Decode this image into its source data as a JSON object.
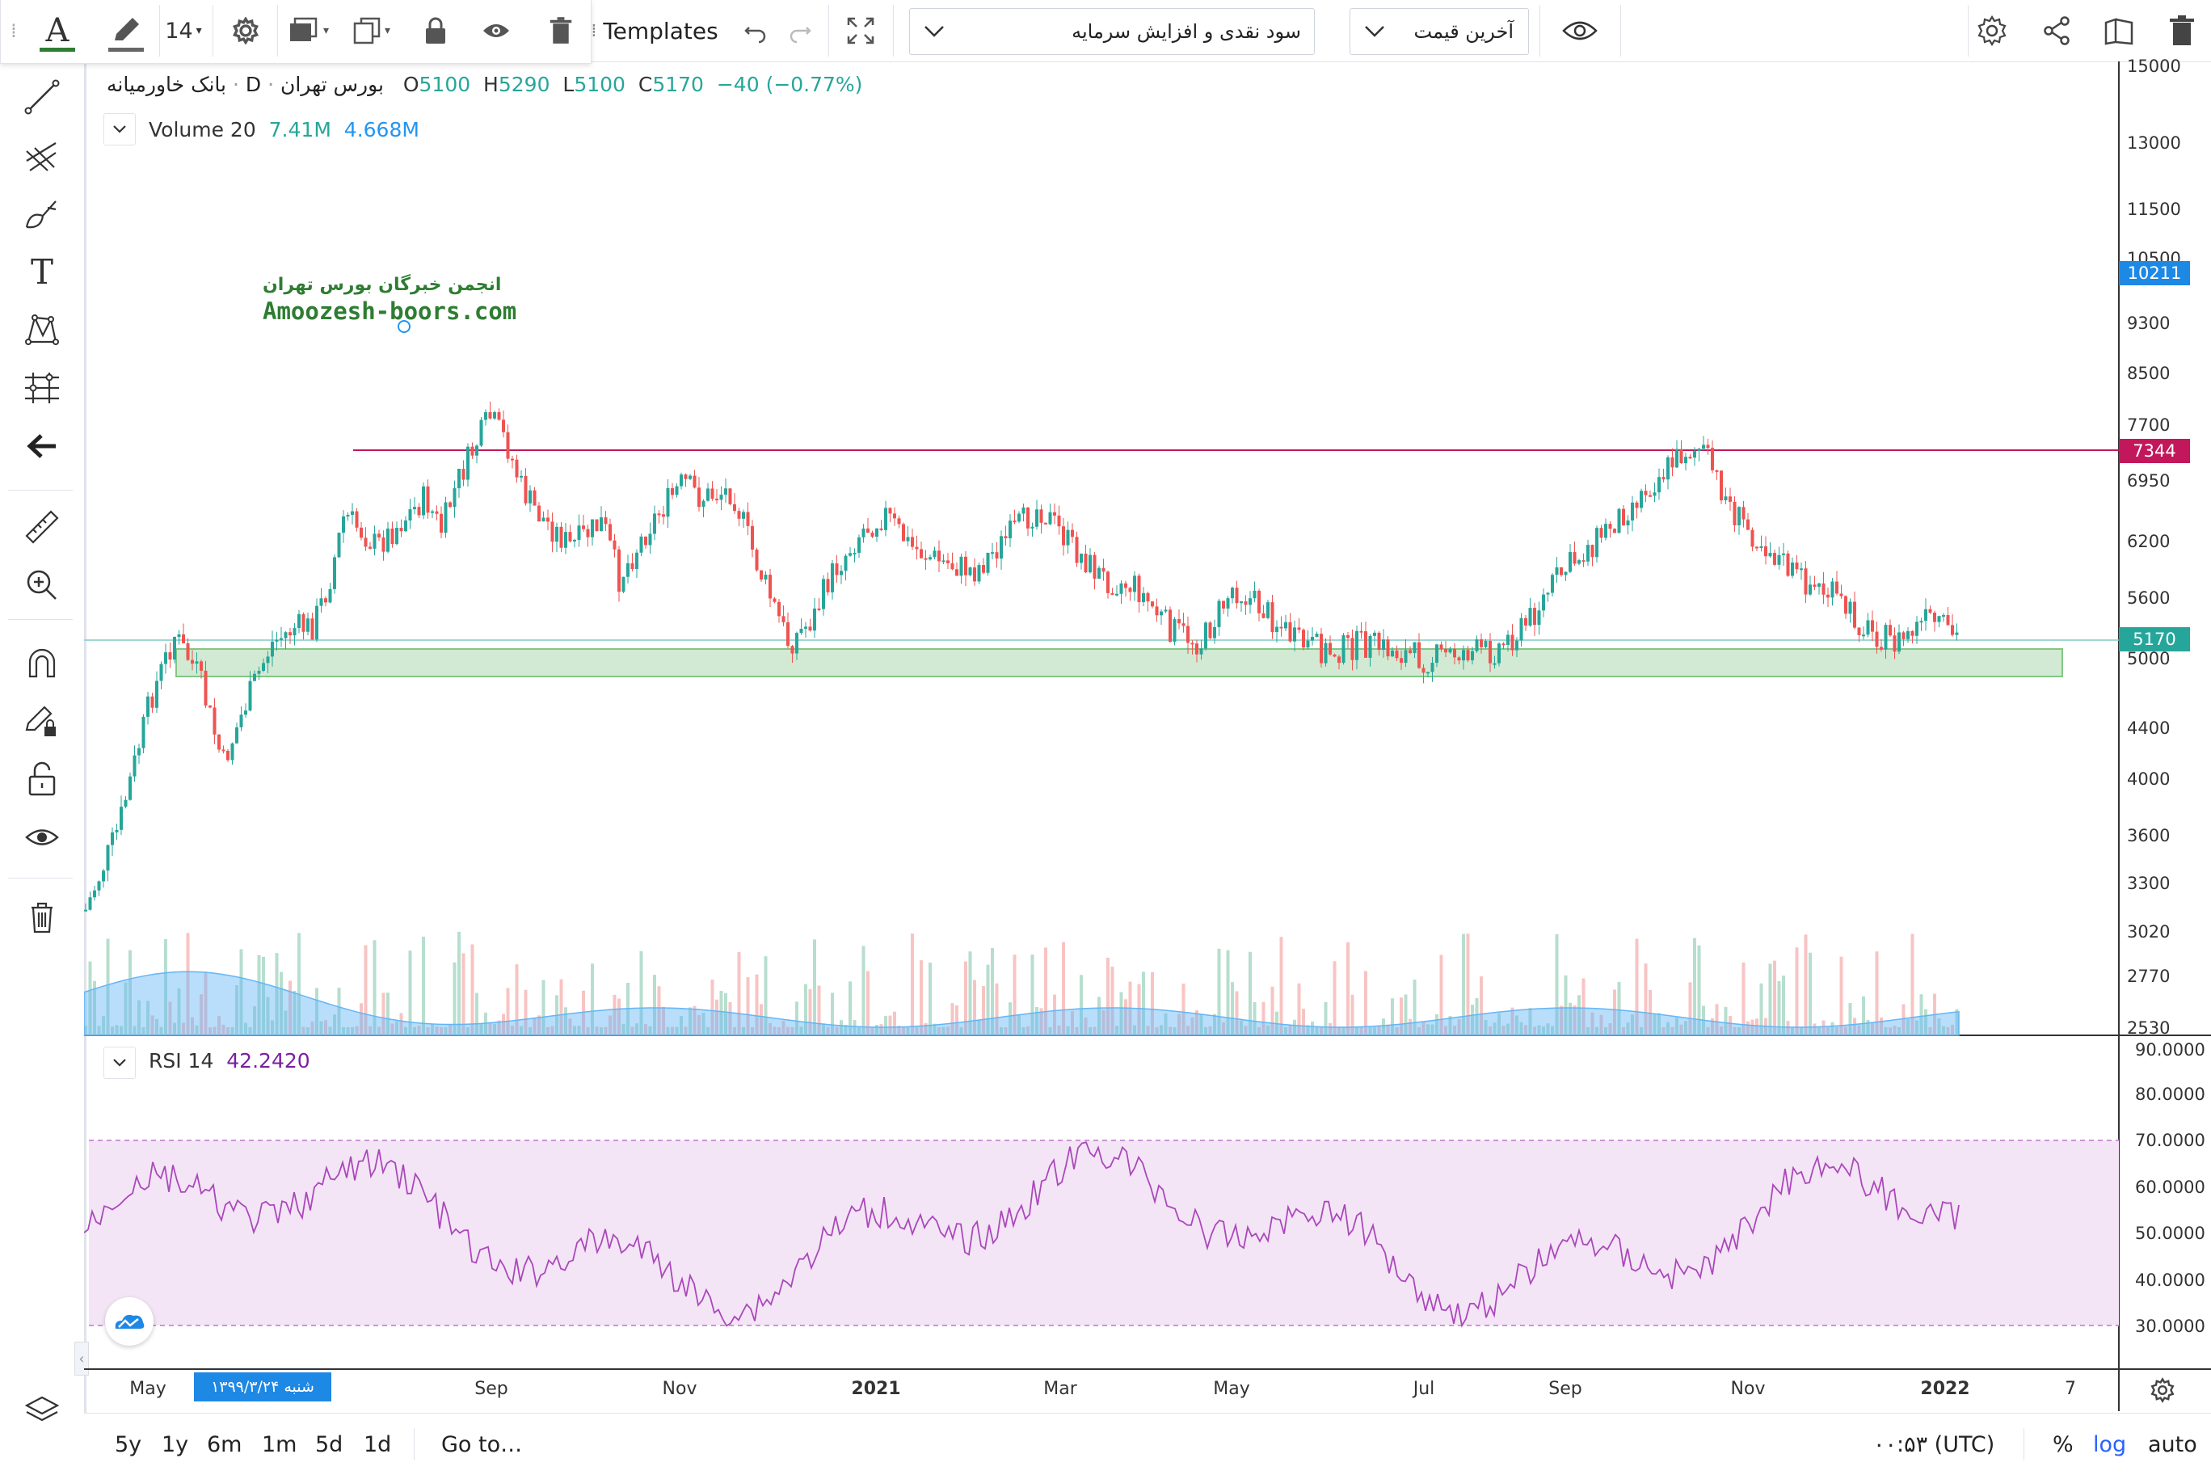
{
  "toolbar": {
    "font_size": "14",
    "templates_label": "Templates",
    "dropdown_event": "سود نقدی و افزایش سرمایه",
    "dropdown_price": "آخرین قیمت"
  },
  "legend": {
    "exchange": "بورس تهران",
    "interval": "D",
    "symbol": "بانک خاورمیانه",
    "o_label": "O",
    "o_value": "5100",
    "h_label": "H",
    "h_value": "5290",
    "l_label": "L",
    "l_value": "5100",
    "c_label": "C",
    "c_value": "5170",
    "change": "−40 (−0.77%)",
    "volume_label": "Volume 20",
    "volume_value": "7.41M",
    "volume_ma": "4.668M",
    "rsi_label": "RSI 14",
    "rsi_value": "42.2420"
  },
  "watermark": {
    "line1": "انجمن خبرگان بورس تهران",
    "line2": "Amoozesh-boors.com"
  },
  "price_axis": {
    "ticks": [
      "15000",
      "13000",
      "11500",
      "10500",
      "9300",
      "8500",
      "7700",
      "6950",
      "6200",
      "5600",
      "5000",
      "4400",
      "4000",
      "3600",
      "3300",
      "3020",
      "2770",
      "2530"
    ],
    "badge_top": "10211",
    "badge_resistance": "7344",
    "badge_last": "5170"
  },
  "rsi_axis": {
    "ticks": [
      "90.0000",
      "80.0000",
      "70.0000",
      "60.0000",
      "50.0000",
      "40.0000",
      "30.0000"
    ]
  },
  "time_axis": {
    "labels": [
      "May",
      "Jul",
      "Sep",
      "Nov",
      "2021",
      "Mar",
      "May",
      "Jul",
      "Sep",
      "Nov",
      "2022",
      "7"
    ],
    "cursor_date": "شنبه ۱۳۹۹/۳/۲۴"
  },
  "bottom": {
    "ranges": [
      "5y",
      "1y",
      "6m",
      "1m",
      "5d",
      "1d"
    ],
    "goto": "Go to…",
    "time": "۰۰:۵۳ (UTC)",
    "percent": "%",
    "log": "log",
    "auto": "auto"
  },
  "colors": {
    "up": "#26a69a",
    "down": "#ef5350",
    "resistance": "#c2185b",
    "support_zone": "#a5d6a7",
    "rsi_line": "#ab47bc",
    "rsi_band": "#f3e5f5",
    "volume_ma": "#64b5f6",
    "accent": "#2962ff"
  }
}
